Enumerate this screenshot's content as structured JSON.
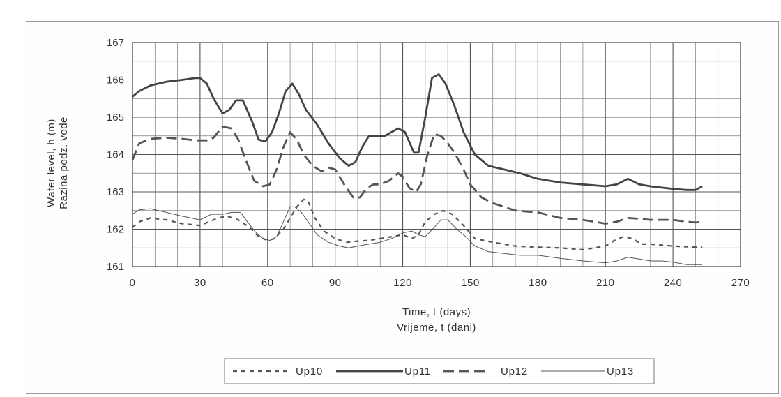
{
  "chart_data": {
    "type": "line",
    "title": "",
    "xlabel": [
      "Time, t (days)",
      "Vrijeme, t (dani)"
    ],
    "ylabel": [
      "Water level, h (m)",
      "Razina podz. vode"
    ],
    "xlim": [
      0,
      270
    ],
    "ylim": [
      161,
      167
    ],
    "x_ticks": [
      0,
      30,
      60,
      90,
      120,
      150,
      180,
      210,
      240,
      270
    ],
    "y_ticks": [
      161,
      162,
      163,
      164,
      165,
      166,
      167
    ],
    "grid": true,
    "legend_position": "bottom",
    "series": [
      {
        "name": "Up10",
        "style": "dotted",
        "color": "#555555",
        "x": [
          0,
          3,
          8,
          15,
          22,
          30,
          38,
          42,
          47,
          52,
          56,
          60,
          63,
          67,
          70,
          73,
          76,
          78,
          81,
          85,
          90,
          95,
          100,
          105,
          110,
          115,
          120,
          124,
          127,
          130,
          134,
          138,
          142,
          147,
          152,
          160,
          170,
          180,
          190,
          200,
          205,
          210,
          214,
          218,
          222,
          226,
          230,
          240,
          250,
          253
        ],
        "y": [
          162.05,
          162.2,
          162.3,
          162.25,
          162.15,
          162.1,
          162.3,
          162.35,
          162.25,
          162.05,
          161.8,
          161.7,
          161.75,
          162.0,
          162.3,
          162.6,
          162.8,
          162.75,
          162.3,
          161.95,
          161.75,
          161.65,
          161.68,
          161.7,
          161.75,
          161.8,
          161.85,
          161.75,
          161.85,
          162.2,
          162.4,
          162.5,
          162.4,
          162.1,
          161.75,
          161.65,
          161.55,
          161.52,
          161.5,
          161.45,
          161.5,
          161.55,
          161.7,
          161.8,
          161.75,
          161.6,
          161.6,
          161.55,
          161.52,
          161.52
        ]
      },
      {
        "name": "Up11",
        "style": "solid-thick",
        "color": "#444444",
        "x": [
          0,
          3,
          8,
          15,
          22,
          28,
          30,
          33,
          36,
          40,
          43,
          46,
          49,
          53,
          56,
          59,
          62,
          65,
          68,
          71,
          74,
          77,
          82,
          87,
          92,
          96,
          99,
          102,
          105,
          108,
          112,
          115,
          118,
          121,
          125,
          127,
          130,
          133,
          136,
          139,
          143,
          147,
          152,
          158,
          165,
          172,
          180,
          190,
          200,
          210,
          215,
          220,
          225,
          230,
          240,
          246,
          250,
          253
        ],
        "y": [
          165.55,
          165.7,
          165.85,
          165.95,
          166.0,
          166.05,
          166.05,
          165.9,
          165.5,
          165.1,
          165.2,
          165.45,
          165.45,
          164.9,
          164.4,
          164.35,
          164.6,
          165.1,
          165.7,
          165.9,
          165.6,
          165.2,
          164.8,
          164.3,
          163.9,
          163.7,
          163.8,
          164.2,
          164.5,
          164.5,
          164.5,
          164.6,
          164.7,
          164.6,
          164.05,
          164.05,
          165.0,
          166.05,
          166.15,
          165.9,
          165.3,
          164.6,
          164.0,
          163.7,
          163.6,
          163.5,
          163.35,
          163.25,
          163.2,
          163.15,
          163.2,
          163.35,
          163.2,
          163.15,
          163.08,
          163.05,
          163.05,
          163.15
        ]
      },
      {
        "name": "Up12",
        "style": "dashed",
        "color": "#555555",
        "x": [
          0,
          3,
          8,
          15,
          22,
          28,
          33,
          36,
          40,
          44,
          47,
          50,
          54,
          58,
          61,
          64,
          67,
          70,
          73,
          76,
          80,
          84,
          87,
          90,
          94,
          98,
          101,
          104,
          107,
          110,
          114,
          118,
          120,
          123,
          126,
          128,
          131,
          134,
          137,
          140,
          143,
          147,
          150,
          155,
          160,
          170,
          180,
          190,
          200,
          210,
          215,
          220,
          225,
          230,
          240,
          246,
          250,
          253
        ],
        "y": [
          163.85,
          164.3,
          164.42,
          164.45,
          164.42,
          164.38,
          164.38,
          164.45,
          164.75,
          164.7,
          164.4,
          163.9,
          163.3,
          163.15,
          163.2,
          163.6,
          164.2,
          164.6,
          164.4,
          164.0,
          163.7,
          163.55,
          163.65,
          163.6,
          163.2,
          162.85,
          162.85,
          163.1,
          163.2,
          163.2,
          163.3,
          163.5,
          163.4,
          163.1,
          163.0,
          163.2,
          164.0,
          164.55,
          164.5,
          164.3,
          164.05,
          163.6,
          163.2,
          162.85,
          162.7,
          162.5,
          162.45,
          162.3,
          162.25,
          162.15,
          162.2,
          162.3,
          162.28,
          162.25,
          162.25,
          162.2,
          162.18,
          162.2
        ]
      },
      {
        "name": "Up13",
        "style": "solid-thin",
        "color": "#555555",
        "x": [
          0,
          3,
          8,
          15,
          22,
          30,
          35,
          40,
          44,
          48,
          51,
          55,
          58,
          61,
          64,
          67,
          70,
          72,
          75,
          78,
          82,
          87,
          92,
          96,
          100,
          105,
          110,
          115,
          120,
          124,
          127,
          130,
          134,
          137,
          140,
          144,
          148,
          152,
          158,
          165,
          172,
          180,
          190,
          200,
          210,
          215,
          220,
          225,
          230,
          235,
          240,
          246,
          250,
          253
        ],
        "y": [
          162.4,
          162.52,
          162.55,
          162.45,
          162.35,
          162.25,
          162.4,
          162.4,
          162.45,
          162.45,
          162.2,
          161.9,
          161.75,
          161.7,
          161.8,
          162.2,
          162.6,
          162.6,
          162.45,
          162.2,
          161.85,
          161.65,
          161.55,
          161.5,
          161.55,
          161.6,
          161.65,
          161.75,
          161.9,
          161.95,
          161.85,
          161.8,
          162.05,
          162.25,
          162.25,
          162.0,
          161.8,
          161.55,
          161.4,
          161.35,
          161.3,
          161.3,
          161.22,
          161.15,
          161.1,
          161.15,
          161.25,
          161.2,
          161.15,
          161.15,
          161.12,
          161.05,
          161.05,
          161.05
        ]
      }
    ]
  }
}
